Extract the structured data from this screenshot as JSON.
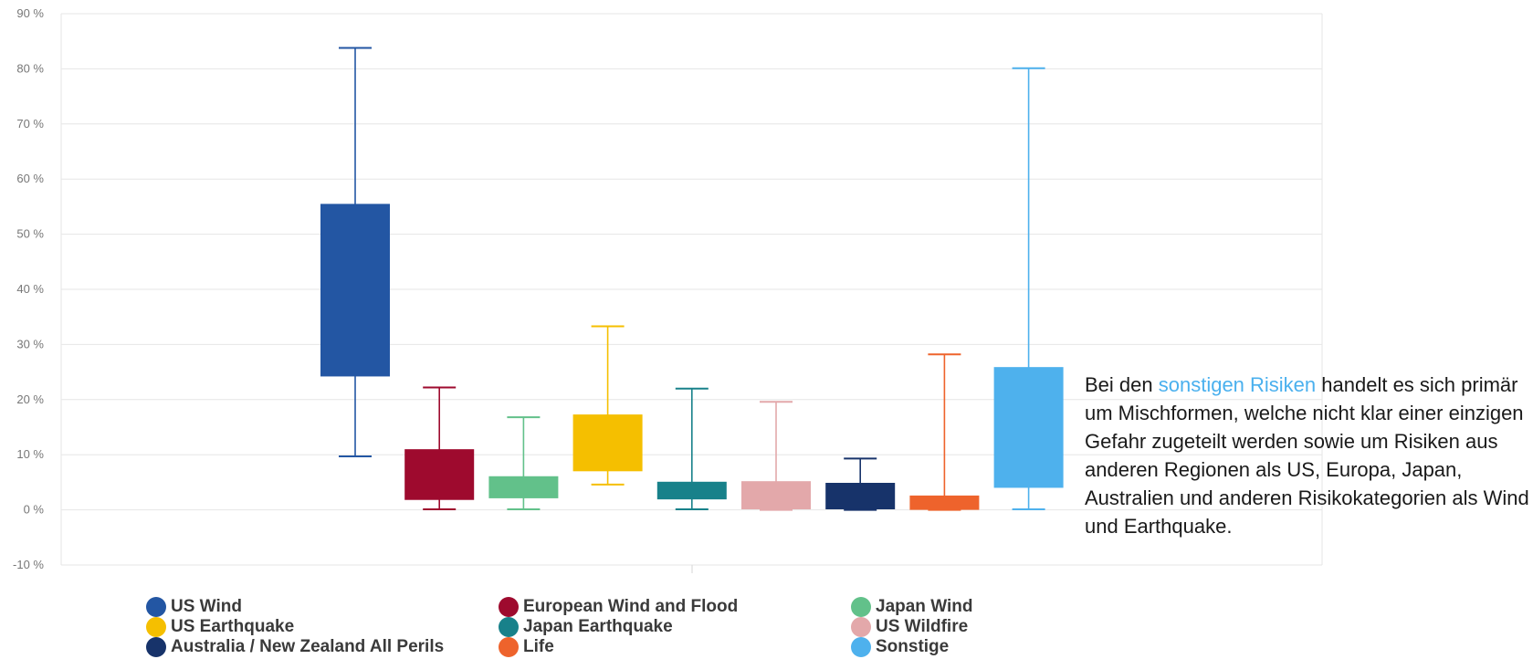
{
  "chart_data": {
    "type": "box",
    "ylim": [
      -10,
      90
    ],
    "y_ticks": [
      "-10 %",
      "0 %",
      "10 %",
      "20 %",
      "30 %",
      "40 %",
      "50 %",
      "60 %",
      "70 %",
      "80 %",
      "90 %"
    ],
    "grid": true,
    "legend_position": "bottom",
    "series": [
      {
        "name": "US Wind",
        "color": "#2356a3",
        "min": 9.7,
        "q1": 24.2,
        "q3": 55.5,
        "max": 83.8
      },
      {
        "name": "European Wind and Flood",
        "color": "#9e0a2e",
        "min": 0.1,
        "q1": 1.8,
        "q3": 11.0,
        "max": 22.2
      },
      {
        "name": "Japan Wind",
        "color": "#62c18a",
        "min": 0.1,
        "q1": 2.1,
        "q3": 6.1,
        "max": 16.8
      },
      {
        "name": "US Earthquake",
        "color": "#f5bf00",
        "min": 4.6,
        "q1": 7.0,
        "q3": 17.3,
        "max": 33.3
      },
      {
        "name": "Japan Earthquake",
        "color": "#18818a",
        "min": 0.1,
        "q1": 1.9,
        "q3": 5.1,
        "max": 22.0
      },
      {
        "name": "US Wildfire",
        "color": "#e3a8aa",
        "min": 0.0,
        "q1": 0.1,
        "q3": 5.2,
        "max": 19.6
      },
      {
        "name": "Australia / New Zealand All Perils",
        "color": "#17336a",
        "min": 0.0,
        "q1": 0.1,
        "q3": 4.9,
        "max": 9.3
      },
      {
        "name": "Life",
        "color": "#ee632c",
        "min": 0.0,
        "q1": 0.0,
        "q3": 2.6,
        "max": 28.2
      },
      {
        "name": "Sonstige",
        "color": "#4eb1ed",
        "min": 0.1,
        "q1": 4.0,
        "q3": 25.9,
        "max": 80.1
      }
    ]
  },
  "note": {
    "prefix": "Bei den ",
    "highlight": "sonstigen Risiken",
    "suffix": " handelt es sich primär um Mischformen, welche nicht klar einer einzigen Gefahr zugeteilt werden sowie um Risiken aus anderen Regionen als US, Europa, Japan, Australien und anderen Risikokategorien als Wind und Earthquake.",
    "highlight_color": "#4ab0ee"
  }
}
